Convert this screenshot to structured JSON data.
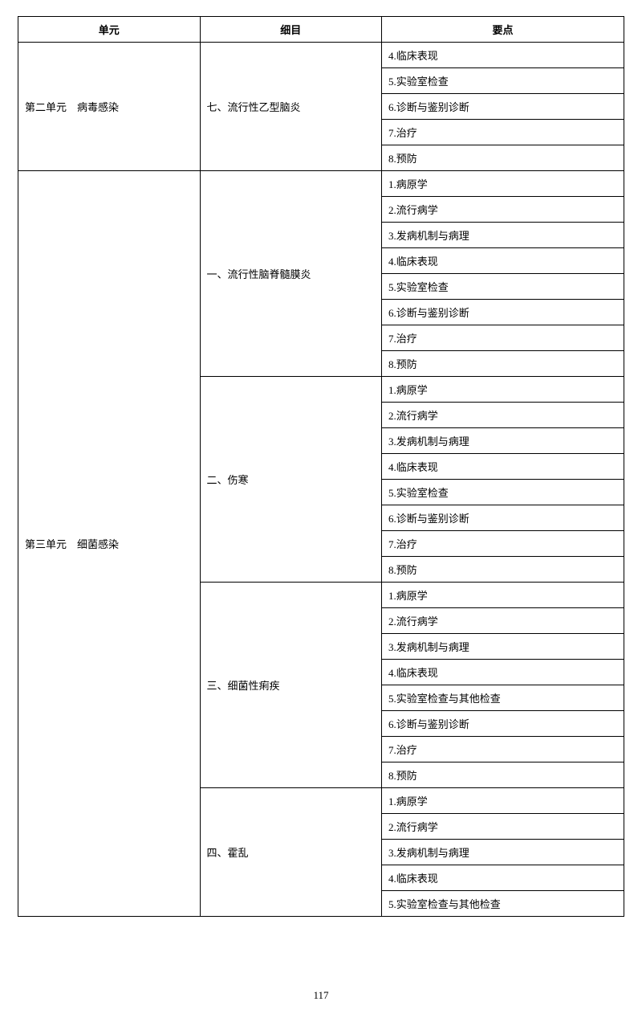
{
  "headers": {
    "unit": "单元",
    "detail": "细目",
    "point": "要点"
  },
  "sections": [
    {
      "unit": "第二单元　病毒感染",
      "details": [
        {
          "name": "七、流行性乙型脑炎",
          "points": [
            "4.临床表现",
            "5.实验室检查",
            "6.诊断与鉴别诊断",
            "7.治疗",
            "8.预防"
          ]
        }
      ]
    },
    {
      "unit": "第三单元　细菌感染",
      "details": [
        {
          "name": "一、流行性脑脊髓膜炎",
          "points": [
            "1.病原学",
            "2.流行病学",
            "3.发病机制与病理",
            "4.临床表现",
            "5.实验室检查",
            "6.诊断与鉴别诊断",
            "7.治疗",
            "8.预防"
          ]
        },
        {
          "name": "二、伤寒",
          "points": [
            "1.病原学",
            "2.流行病学",
            "3.发病机制与病理",
            "4.临床表现",
            "5.实验室检查",
            "6.诊断与鉴别诊断",
            "7.治疗",
            "8.预防"
          ]
        },
        {
          "name": "三、细菌性痢疾",
          "points": [
            "1.病原学",
            "2.流行病学",
            "3.发病机制与病理",
            "4.临床表现",
            "5.实验室检查与其他检查",
            "6.诊断与鉴别诊断",
            "7.治疗",
            "8.预防"
          ]
        },
        {
          "name": "四、霍乱",
          "points": [
            "1.病原学",
            "2.流行病学",
            "3.发病机制与病理",
            "4.临床表现",
            "5.实验室检查与其他检查"
          ]
        }
      ]
    }
  ],
  "page_number": "117",
  "colors": {
    "border": "#000000",
    "text": "#000000",
    "background": "#ffffff"
  },
  "typography": {
    "font_family": "SimSun",
    "font_size_pt": 10
  }
}
